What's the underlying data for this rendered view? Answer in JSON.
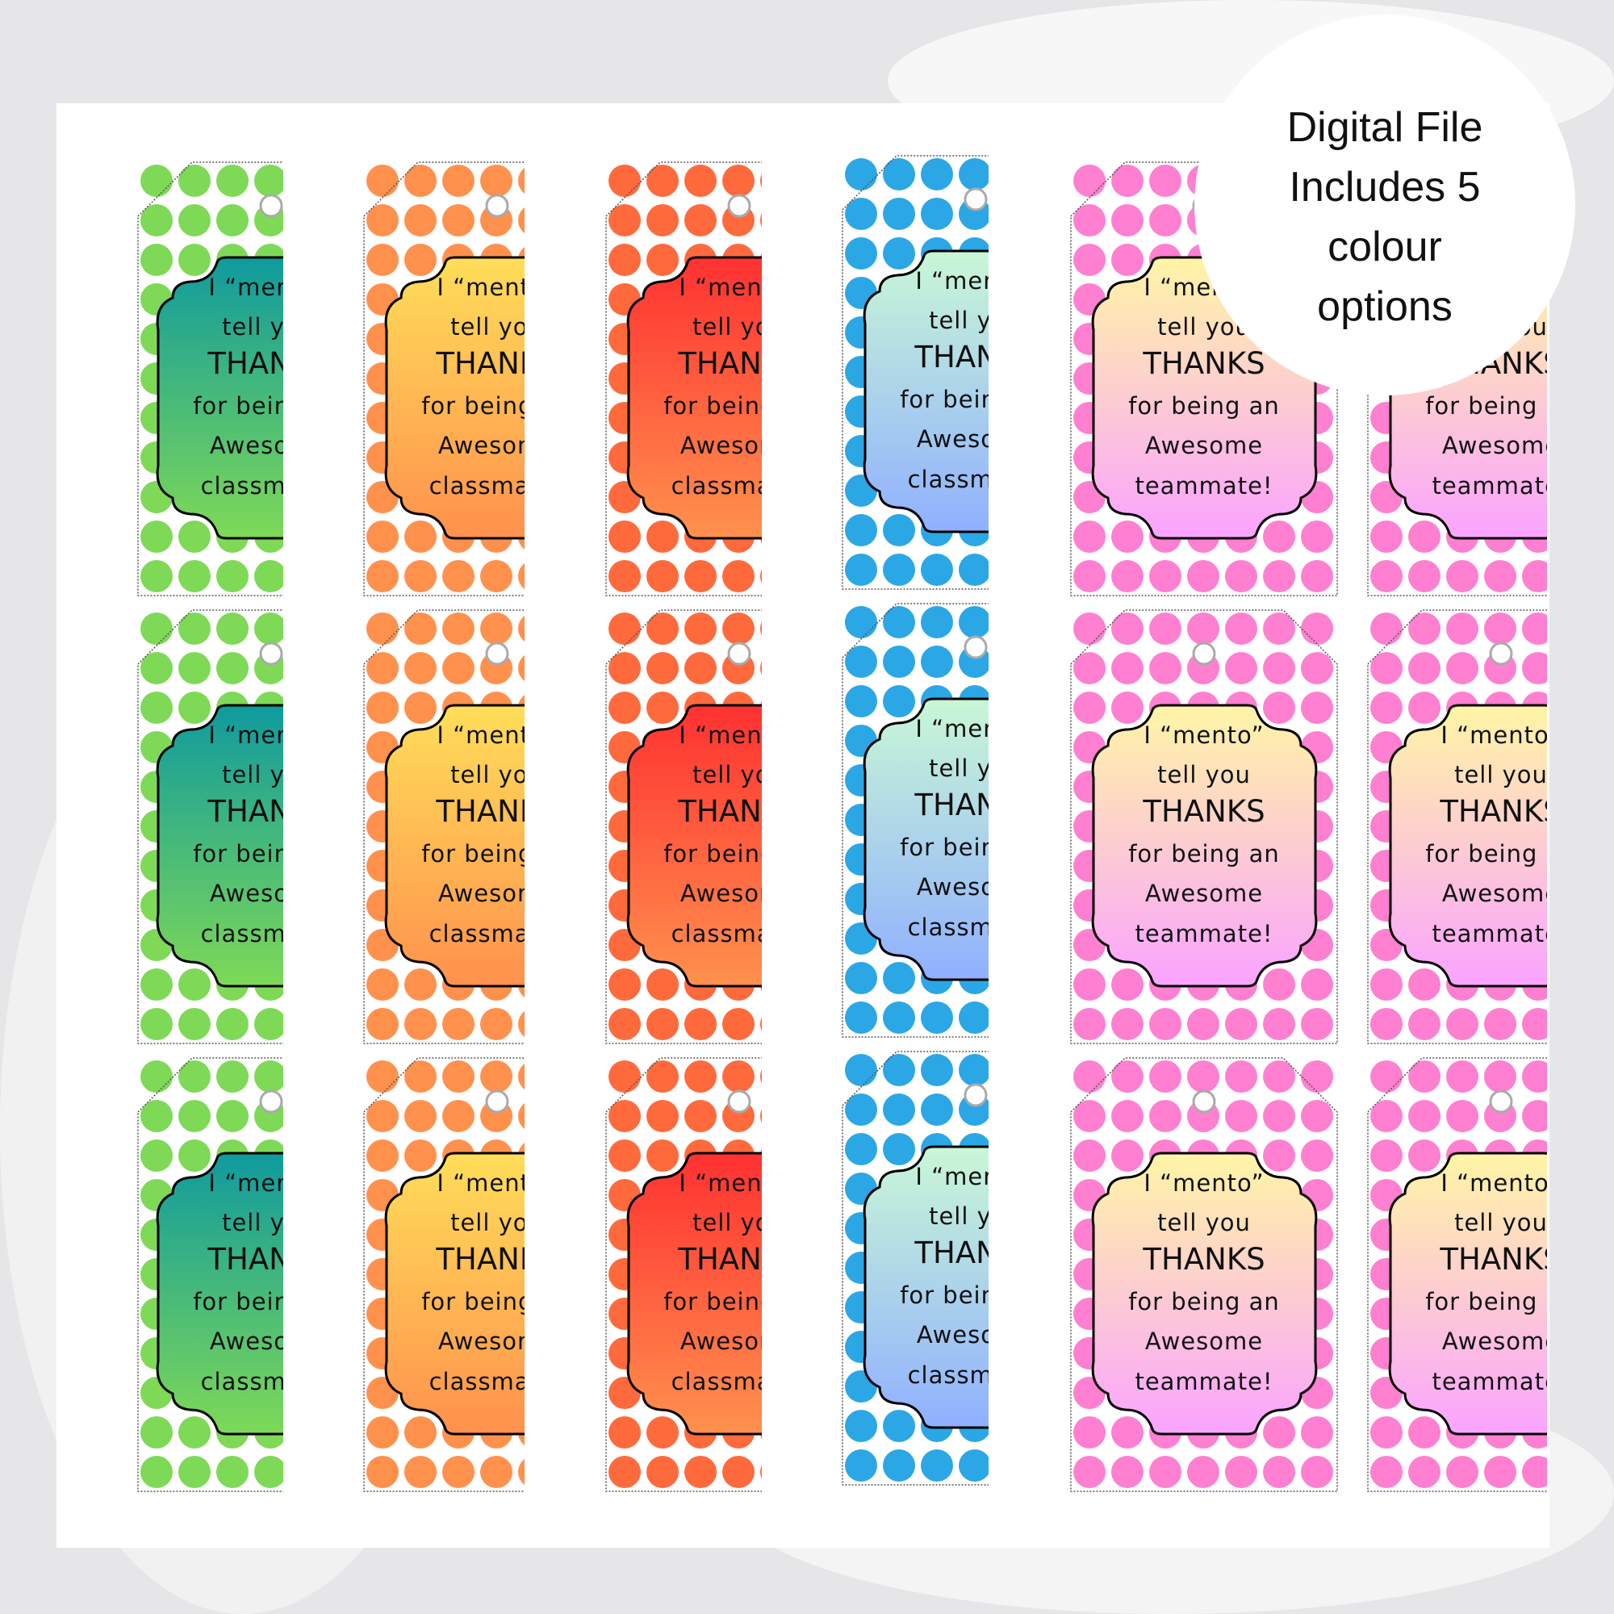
{
  "badge": {
    "lines": [
      "Digital File",
      "Includes 5",
      "colour",
      "options"
    ]
  },
  "tag_text": {
    "classmate": [
      "I “mento”",
      "tell you",
      "THANKS",
      "for being an",
      "Awesome",
      "classmate!"
    ],
    "teammate": [
      "I “mento”",
      "tell you",
      "THANKS",
      "for being an",
      "Awesome",
      "teammate!"
    ]
  },
  "colour_options": [
    {
      "name": "green",
      "dot": "#7ed957",
      "grad_top": "#0f9a9e",
      "grad_bottom": "#7ed957",
      "text": "classmate"
    },
    {
      "name": "orange",
      "dot": "#ff914d",
      "grad_top": "#ffde59",
      "grad_bottom": "#ff914d",
      "text": "classmate"
    },
    {
      "name": "red",
      "dot": "#ff6a3d",
      "grad_top": "#ff3131",
      "grad_bottom": "#ff914d",
      "text": "classmate"
    },
    {
      "name": "blue",
      "dot": "#2ba7e6",
      "grad_top": "#c9f7d6",
      "grad_bottom": "#8fb0ff",
      "text": "classmate"
    },
    {
      "name": "pink",
      "dot": "#ff7fd0",
      "grad_top": "#fff5a5",
      "grad_bottom": "#faa3ff",
      "text": "teammate"
    },
    {
      "name": "pink",
      "dot": "#ff7fd0",
      "grad_top": "#fff5a5",
      "grad_bottom": "#faa3ff",
      "text": "teammate"
    }
  ]
}
